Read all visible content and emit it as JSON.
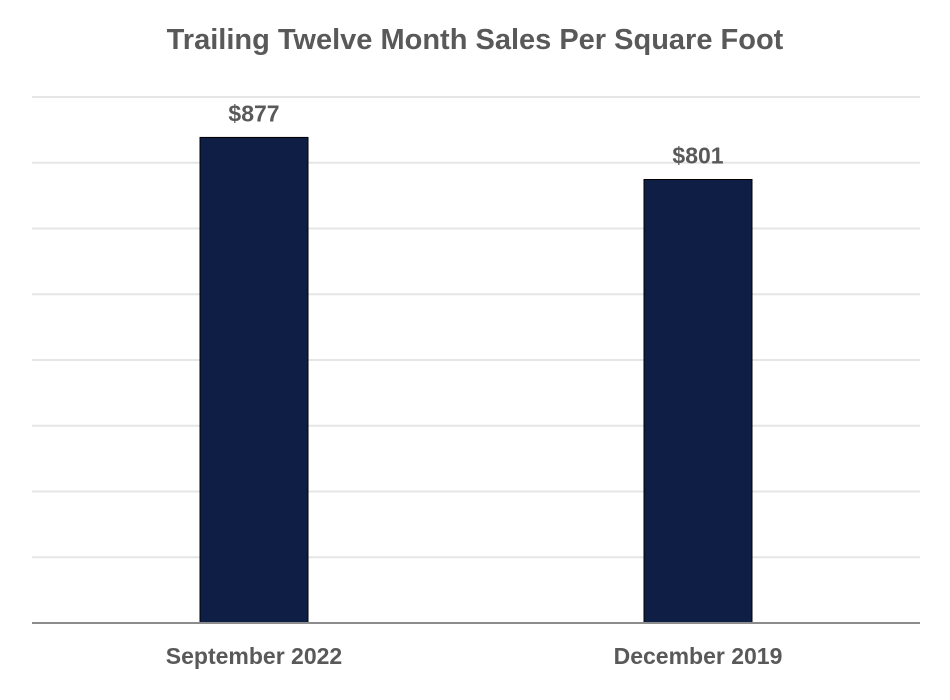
{
  "chart_data": {
    "type": "bar",
    "title": "Trailing Twelve Month Sales Per Square Foot",
    "categories": [
      "September 2022",
      "December 2019"
    ],
    "values": [
      877,
      801
    ],
    "data_labels": [
      "$877",
      "$801"
    ],
    "xlabel": "",
    "ylabel": "",
    "ylim": [
      0,
      950
    ],
    "gridlines": true,
    "gridline_step": 118.75,
    "legend": "none",
    "bar_color": "#0e1e45",
    "gridline_color": "#e6e6e6",
    "axis_color": "#8c8c8c",
    "text_color": "#595959"
  }
}
